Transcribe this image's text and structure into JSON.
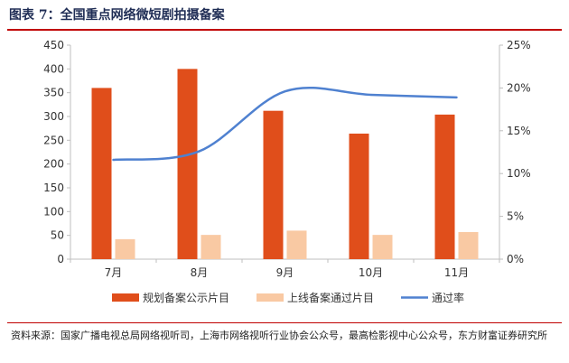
{
  "figure": {
    "title": "图表 7：全国重点网络微短剧拍摄备案",
    "source": "资料来源：国家广播电视总局网络视听司，上海市网络视听行业协会公众号，最高检影视中心公众号，东方财富证券研究所"
  },
  "chart_data": {
    "type": "bar",
    "categories": [
      "7月",
      "8月",
      "9月",
      "10月",
      "11月"
    ],
    "series": [
      {
        "name": "规划备案公示片目",
        "kind": "bar",
        "axis": "left",
        "color": "#e04e1b",
        "values": [
          360,
          400,
          312,
          264,
          304
        ]
      },
      {
        "name": "上线备案通过片目",
        "kind": "bar",
        "axis": "left",
        "color": "#f9c9a3",
        "values": [
          42,
          51,
          60,
          51,
          57
        ]
      },
      {
        "name": "通过率",
        "kind": "line",
        "axis": "right",
        "color": "#4f81d0",
        "values": [
          11.6,
          12.6,
          19.6,
          19.2,
          18.9
        ]
      }
    ],
    "y_left": {
      "min": 0,
      "max": 450,
      "step": 50,
      "ticks": [
        "0",
        "50",
        "100",
        "150",
        "200",
        "250",
        "300",
        "350",
        "400",
        "450"
      ]
    },
    "y_right": {
      "min": 0,
      "max": 25,
      "step": 5,
      "ticks": [
        "0%",
        "5%",
        "10%",
        "15%",
        "20%",
        "25%"
      ]
    },
    "legend_position": "bottom",
    "grid": false
  }
}
